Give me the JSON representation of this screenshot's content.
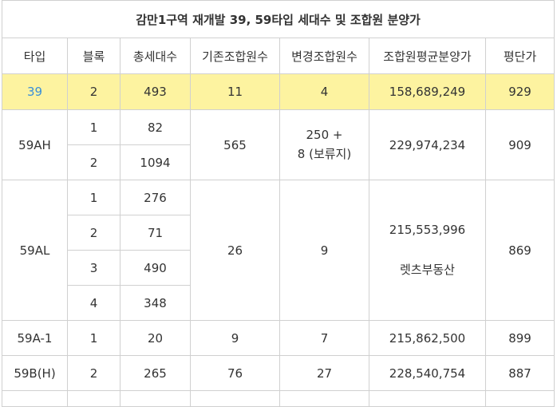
{
  "title": "감만1구역 재개발 39, 59타입 세대수 및 조합원 분양가",
  "headers": [
    "타입",
    "블록",
    "총세대수",
    "기존조합원수",
    "변경조합원수",
    "조합원평균분양가",
    "평단가"
  ],
  "rows": {
    "r39": {
      "type": "39",
      "block": "2",
      "total": "493",
      "existing": "11",
      "changed": "4",
      "price": "158,689,249",
      "per_pyeong": "929"
    },
    "r59ah": {
      "type": "59AH",
      "blocks": [
        "1",
        "2"
      ],
      "totals": [
        "82",
        "1094"
      ],
      "existing": "565",
      "changed_line1": "250 +",
      "changed_line2": "8 (보류지)",
      "price": "229,974,234",
      "per_pyeong": "909"
    },
    "r59al": {
      "type": "59AL",
      "blocks": [
        "1",
        "2",
        "3",
        "4"
      ],
      "totals": [
        "276",
        "71",
        "490",
        "348"
      ],
      "existing": "26",
      "changed": "9",
      "price": "215,553,996",
      "note": "렛츠부동산",
      "per_pyeong": "869"
    },
    "r59a1": {
      "type": "59A-1",
      "block": "1",
      "total": "20",
      "existing": "9",
      "changed": "7",
      "price": "215,862,500",
      "per_pyeong": "899"
    },
    "r59bh": {
      "type": "59B(H)",
      "block": "2",
      "total": "265",
      "existing": "76",
      "changed": "27",
      "price": "228,540,754",
      "per_pyeong": "887"
    }
  },
  "colors": {
    "title": "#e0002a",
    "header": "#3a8fd8",
    "highlight": "#fdf3a0",
    "border": "#d0d0d0"
  }
}
